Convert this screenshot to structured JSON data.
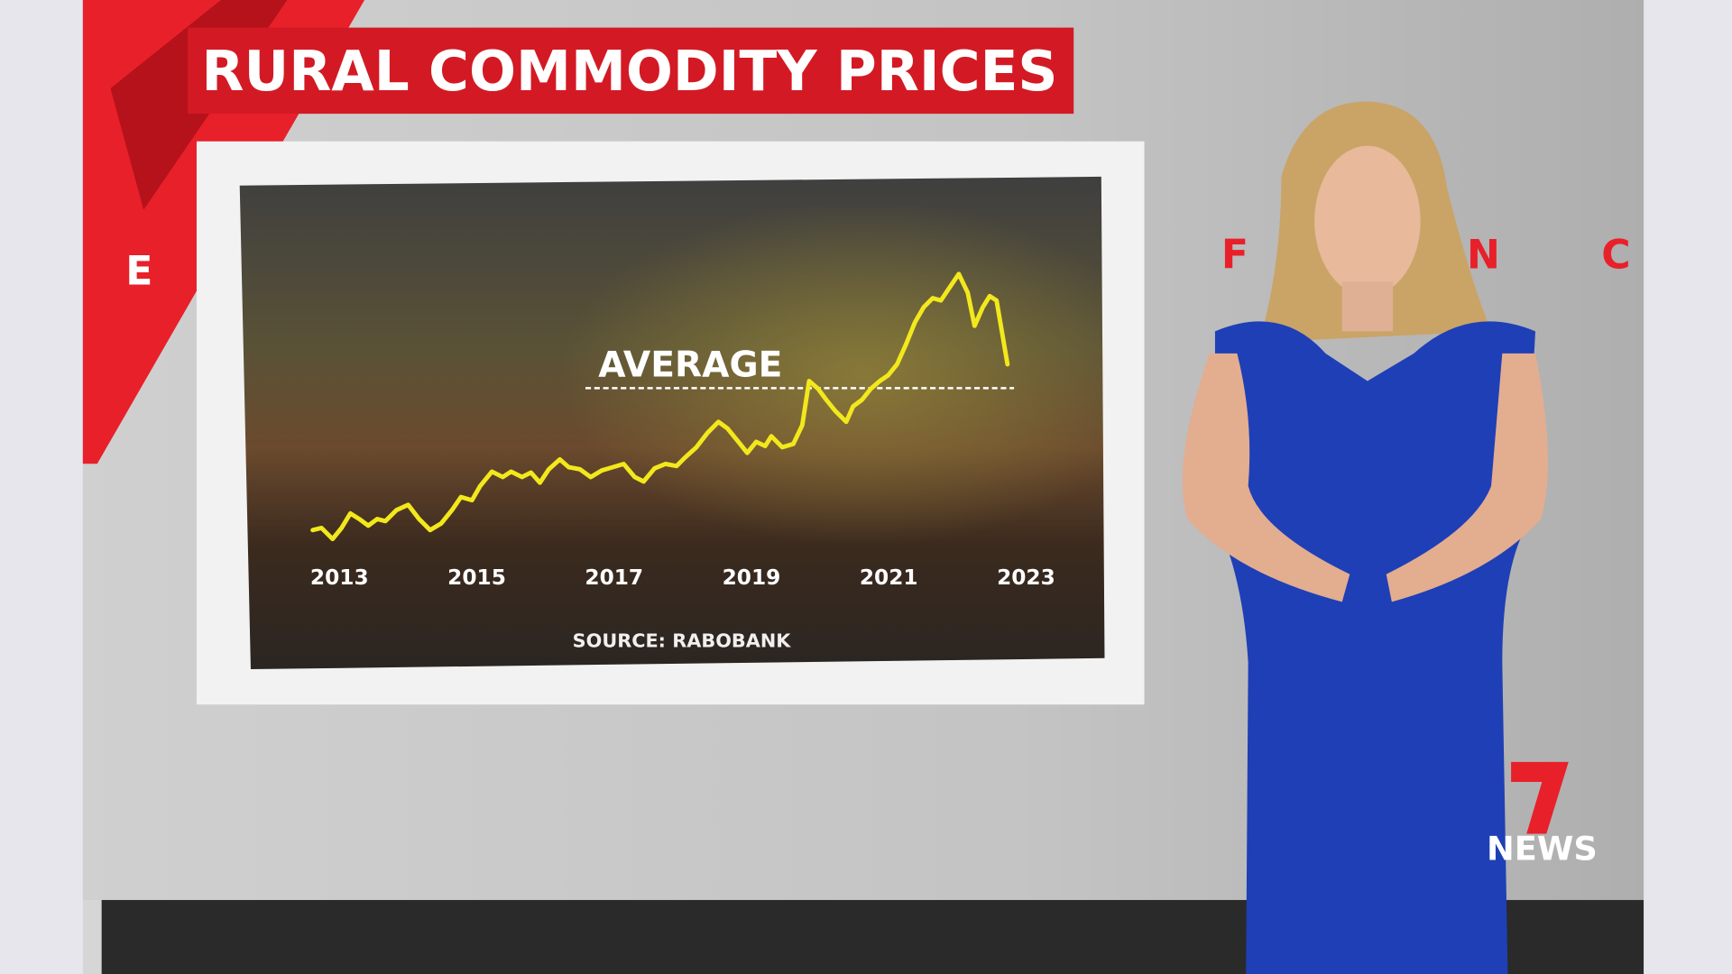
{
  "chart_data": {
    "type": "line",
    "title": "RURAL COMMODITY PRICES",
    "source": "SOURCE: RABOBANK",
    "x": [
      2012.61,
      2012.74,
      2012.9,
      2013.03,
      2013.16,
      2013.29,
      2013.42,
      2013.55,
      2013.67,
      2013.83,
      2014.0,
      2014.16,
      2014.32,
      2014.48,
      2014.64,
      2014.77,
      2014.93,
      2015.05,
      2015.22,
      2015.38,
      2015.5,
      2015.66,
      2015.79,
      2015.92,
      2016.05,
      2016.21,
      2016.34,
      2016.5,
      2016.66,
      2016.82,
      2016.98,
      2017.14,
      2017.3,
      2017.43,
      2017.59,
      2017.75,
      2017.91,
      2018.04,
      2018.2,
      2018.36,
      2018.52,
      2018.65,
      2018.81,
      2018.94,
      2019.07,
      2019.2,
      2019.29,
      2019.45,
      2019.61,
      2019.74,
      2019.84,
      2019.97,
      2020.09,
      2020.22,
      2020.38,
      2020.48,
      2020.61,
      2020.74,
      2020.87,
      2020.99,
      2021.12,
      2021.25,
      2021.38,
      2021.51,
      2021.64,
      2021.76,
      2021.89,
      2022.02,
      2022.15,
      2022.25,
      2022.37,
      2022.47,
      2022.57,
      2022.73
    ],
    "values": [
      7.4,
      8.1,
      4.4,
      8.1,
      13.0,
      11.1,
      8.9,
      11.1,
      10.4,
      14.1,
      15.9,
      11.1,
      7.4,
      9.6,
      14.1,
      18.5,
      17.4,
      22.2,
      27.0,
      25.2,
      27.0,
      25.2,
      26.7,
      23.3,
      27.8,
      31.1,
      28.5,
      27.8,
      25.2,
      27.4,
      28.5,
      29.6,
      25.2,
      23.7,
      28.1,
      29.6,
      28.9,
      31.9,
      35.2,
      40.0,
      43.7,
      41.5,
      37.0,
      33.3,
      37.0,
      35.6,
      38.9,
      35.2,
      36.3,
      42.6,
      57.4,
      54.8,
      51.1,
      47.4,
      43.7,
      48.9,
      51.1,
      54.8,
      57.4,
      59.3,
      63.0,
      69.6,
      77.0,
      82.2,
      85.2,
      84.4,
      88.9,
      93.3,
      87.0,
      75.9,
      82.2,
      85.9,
      84.4,
      63.0
    ],
    "color": "#f2e81c",
    "xlim": [
      2012.4,
      2023.5
    ],
    "xticks": [
      2013,
      2015,
      2017,
      2019,
      2021,
      2023
    ],
    "ylim": [
      0,
      100
    ],
    "annotation": {
      "label": "AVERAGE",
      "value": 55
    }
  },
  "background": {
    "left_letter": "E",
    "right_letters": [
      "F",
      "N",
      "C"
    ]
  },
  "logo": {
    "number": "7",
    "text": "NEWS"
  }
}
